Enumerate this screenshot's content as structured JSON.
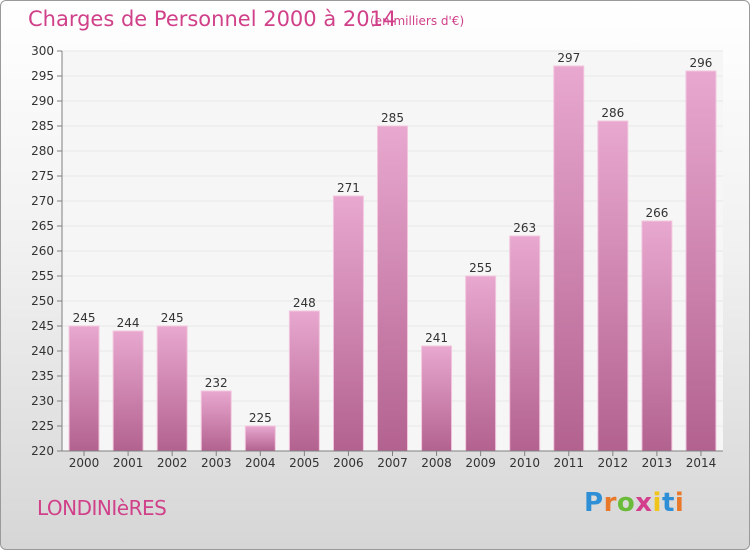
{
  "header": {
    "title": "Charges de Personnel 2000 à 2014",
    "subtitle": "(en milliers d'€)"
  },
  "footer": {
    "commune": "LONDINIèRES",
    "logo_text": "Proxiti",
    "logo_letter_colors": [
      "#2f8fd6",
      "#e8792a",
      "#6abb3a",
      "#d43f8d",
      "#f0c419",
      "#2f8fd6",
      "#e8792a"
    ]
  },
  "colors": {
    "title": "#d0418a",
    "bar_top": "#e8a8cf",
    "bar_bottom": "#b3628f",
    "bar_edge": "#f3c6de",
    "axis": "#808080",
    "grid": "#e8e8e8"
  },
  "chart_data": {
    "type": "bar",
    "title": "Charges de Personnel 2000 à 2014",
    "subtitle": "(en milliers d'€)",
    "categories": [
      "2000",
      "2001",
      "2002",
      "2003",
      "2004",
      "2005",
      "2006",
      "2007",
      "2008",
      "2009",
      "2010",
      "2011",
      "2012",
      "2013",
      "2014"
    ],
    "values": [
      245,
      244,
      245,
      232,
      225,
      248,
      271,
      285,
      241,
      255,
      263,
      297,
      286,
      266,
      296
    ],
    "ylim": [
      220,
      300
    ],
    "ytick_step": 5,
    "grid": true,
    "legend": "none",
    "xlabel": "",
    "ylabel": ""
  }
}
